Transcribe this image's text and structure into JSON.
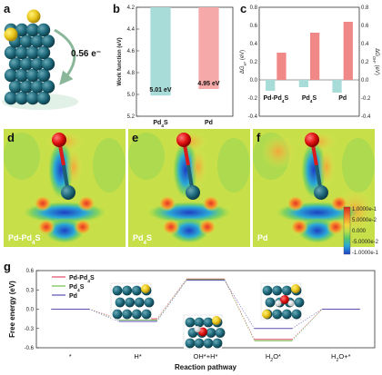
{
  "panels": {
    "a": {
      "letter": "a",
      "charge_transfer": "0.56 e⁻"
    },
    "b": {
      "letter": "b"
    },
    "c": {
      "letter": "c"
    },
    "d": {
      "letter": "d",
      "label_main": "Pd-Pd",
      "label_sub": "4",
      "label_end": "S"
    },
    "e": {
      "letter": "e",
      "label_main": "Pd",
      "label_sub": "4",
      "label_end": "S"
    },
    "f": {
      "letter": "f",
      "label_main": "Pd"
    },
    "g": {
      "letter": "g"
    }
  },
  "colorbar": {
    "ticks": [
      "1.0000e-1",
      "5.0000e-2",
      "0.000",
      "-5.0000e-2",
      "-1.0000e-1"
    ],
    "colors": [
      "#d8261f",
      "#f07a2a",
      "#f4d63a",
      "#b8e04a",
      "#55c96b",
      "#2aa9d6",
      "#1f40c9"
    ]
  },
  "chart_data": [
    {
      "panel": "b",
      "type": "bar",
      "categories": [
        "Pd4S",
        "Pd"
      ],
      "category_labels": [
        {
          "main": "Pd",
          "sub": "4",
          "end": "S"
        },
        {
          "main": "Pd",
          "sub": "",
          "end": ""
        }
      ],
      "values": [
        5.01,
        4.95
      ],
      "value_labels": [
        "5.01 eV",
        "4.95 eV"
      ],
      "colors": [
        "#a8dcd9",
        "#f5a9a9"
      ],
      "ylabel": "Work function (eV)",
      "ylim": [
        4.2,
        5.2
      ],
      "yticks": [
        "4.2",
        "4.4",
        "4.6",
        "4.8",
        "5.0",
        "5.2"
      ],
      "y_inverted": true
    },
    {
      "panel": "c",
      "type": "bar",
      "categories": [
        "Pd-Pd4S",
        "Pd4S",
        "Pd"
      ],
      "category_labels": [
        {
          "main": "Pd-Pd",
          "sub": "4",
          "end": "S"
        },
        {
          "main": "Pd",
          "sub": "4",
          "end": "S"
        },
        {
          "main": "Pd",
          "sub": "",
          "end": ""
        }
      ],
      "series": [
        {
          "name": "ΔG_H*",
          "values": [
            -0.12,
            -0.08,
            -0.14
          ],
          "color": "#a8dcd9",
          "axis": "left"
        },
        {
          "name": "ΔG_OH*",
          "values": [
            0.3,
            0.52,
            0.64
          ],
          "color": "#f08888",
          "axis": "right"
        }
      ],
      "ylabel_left": "ΔG",
      "ylabel_left_sub": "H*",
      "ylabel_left_end": " (eV)",
      "ylabel_right": "ΔG",
      "ylabel_right_sub": "OH*",
      "ylabel_right_end": " (eV)",
      "ylim_left": [
        -0.4,
        0.8
      ],
      "ylim_right": [
        -0.4,
        0.8
      ],
      "yticks": [
        "-0.4",
        "-0.2",
        "0.0",
        "0.2",
        "0.4",
        "0.6",
        "0.8"
      ]
    },
    {
      "panel": "g",
      "type": "line",
      "xlabel": "Reaction pathway",
      "ylabel": "Free energy (eV)",
      "ylim": [
        -0.6,
        0.6
      ],
      "yticks": [
        "-0.6",
        "-0.3",
        "0.0",
        "0.3",
        "0.6"
      ],
      "categories": [
        "*",
        "H*",
        "OH*+H*",
        "H2O*",
        "H2O+*"
      ],
      "category_labels": [
        {
          "main": "*",
          "sub": "",
          "end": ""
        },
        {
          "main": "H*",
          "sub": "",
          "end": ""
        },
        {
          "main": "OH*+H*",
          "sub": "",
          "end": ""
        },
        {
          "main": "H",
          "sub": "2",
          "end": "O*"
        },
        {
          "main": "H",
          "sub": "2",
          "end": "O+*"
        }
      ],
      "series": [
        {
          "name": "Pd-Pd4S",
          "legend": {
            "main": "Pd-Pd",
            "sub": "4",
            "end": "S"
          },
          "color": "#e24a6a",
          "values": [
            0,
            -0.15,
            0.47,
            -0.47,
            0
          ]
        },
        {
          "name": "Pd4S",
          "legend": {
            "main": "Pd",
            "sub": "4",
            "end": "S"
          },
          "color": "#6fbf4a",
          "values": [
            0,
            -0.17,
            0.46,
            -0.49,
            0
          ]
        },
        {
          "name": "Pd",
          "legend": {
            "main": "Pd",
            "sub": "",
            "end": ""
          },
          "color": "#5a4fb0",
          "values": [
            0,
            -0.19,
            0.45,
            -0.3,
            0
          ]
        }
      ]
    }
  ]
}
